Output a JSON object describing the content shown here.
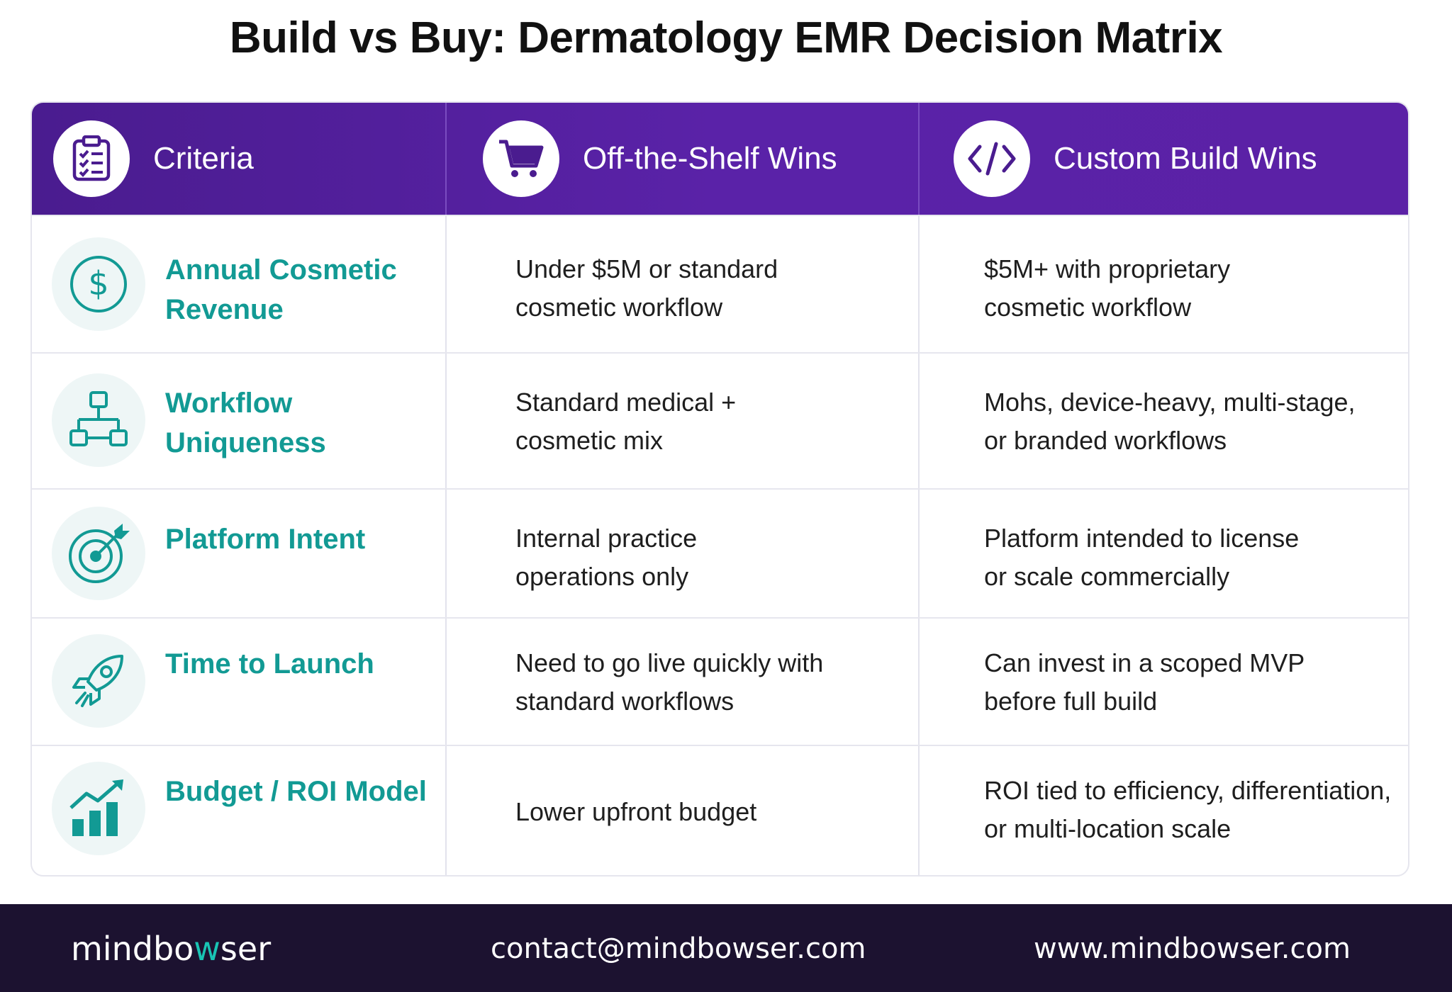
{
  "title": "Build vs Buy: Dermatology EMR Decision Matrix",
  "colors": {
    "header": "#5a22a8",
    "accent": "#129a94",
    "footer": "#1c1230"
  },
  "header": [
    {
      "label": "Criteria",
      "icon": "clipboard-checklist-icon"
    },
    {
      "label": "Off-the-Shelf Wins",
      "icon": "shopping-cart-icon"
    },
    {
      "label": "Custom Build Wins",
      "icon": "code-icon"
    }
  ],
  "rows": [
    {
      "criteria": "Annual Cosmetic Revenue",
      "icon": "dollar-icon",
      "off_shelf": "Under $5M or standard cosmetic workflow",
      "custom": "$5M+ with proprietary cosmetic workflow"
    },
    {
      "criteria": "Workflow Uniqueness",
      "icon": "workflow-hierarchy-icon",
      "off_shelf": "Standard medical + cosmetic mix",
      "custom": "Mohs, device-heavy, multi-stage, or branded workflows"
    },
    {
      "criteria": "Platform Intent",
      "icon": "target-icon",
      "off_shelf": "Internal practice operations only",
      "custom": "Platform intended to license or scale commercially"
    },
    {
      "criteria": "Time to Launch",
      "icon": "rocket-icon",
      "off_shelf": "Need to go live quickly with standard workflows",
      "custom": "Can invest in a scoped MVP before full build"
    },
    {
      "criteria": "Budget / ROI Model",
      "icon": "growth-chart-icon",
      "off_shelf": "Lower upfront budget",
      "custom": "ROI tied to efficiency, differentiation, or multi-location scale"
    }
  ],
  "footer": {
    "brand_pre": "mindbo",
    "brand_accent": "w",
    "brand_post": "ser",
    "email": "contact@mindbowser.com",
    "website": "www.mindbowser.com"
  }
}
